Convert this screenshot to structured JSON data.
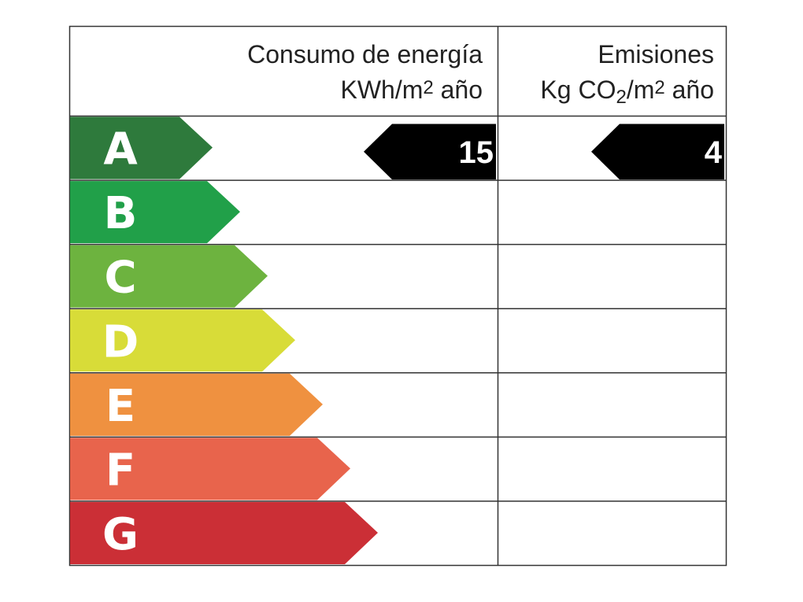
{
  "header": {
    "energy_title": "Consumo de energía",
    "energy_unit": [
      "KWh/m",
      "2",
      " año"
    ],
    "emissions_title": "Emisiones",
    "emissions_unit": [
      "Kg CO",
      "2",
      "/m",
      "2",
      " año"
    ]
  },
  "ratings": [
    {
      "letter": "A",
      "color": "#2e7a3c"
    },
    {
      "letter": "B",
      "color": "#21a049"
    },
    {
      "letter": "C",
      "color": "#6db33f"
    },
    {
      "letter": "D",
      "color": "#d8dc38"
    },
    {
      "letter": "E",
      "color": "#ef9140"
    },
    {
      "letter": "F",
      "color": "#e8644c"
    },
    {
      "letter": "G",
      "color": "#cb2f36"
    }
  ],
  "energy": {
    "rating": "A",
    "value": "15"
  },
  "emissions": {
    "rating": "A",
    "value": "4"
  }
}
